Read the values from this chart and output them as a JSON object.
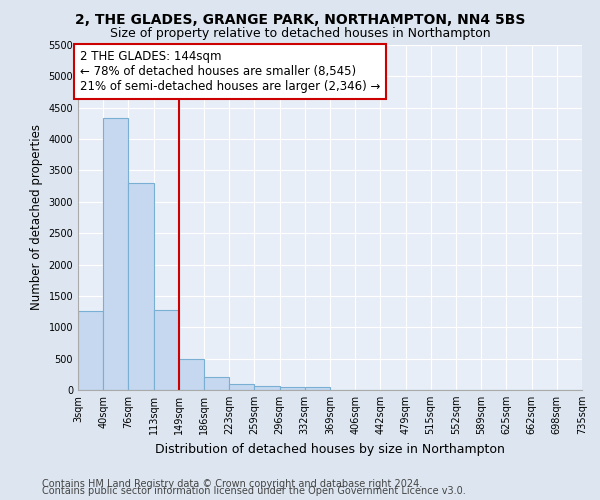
{
  "title": "2, THE GLADES, GRANGE PARK, NORTHAMPTON, NN4 5BS",
  "subtitle": "Size of property relative to detached houses in Northampton",
  "xlabel": "Distribution of detached houses by size in Northampton",
  "ylabel": "Number of detached properties",
  "footnote1": "Contains HM Land Registry data © Crown copyright and database right 2024.",
  "footnote2": "Contains public sector information licensed under the Open Government Licence v3.0.",
  "annotation_line1": "2 THE GLADES: 144sqm",
  "annotation_line2": "← 78% of detached houses are smaller (8,545)",
  "annotation_line3": "21% of semi-detached houses are larger (2,346) →",
  "bar_edges": [
    3,
    40,
    76,
    113,
    149,
    186,
    223,
    259,
    296,
    332,
    369,
    406,
    442,
    479,
    515,
    552,
    589,
    625,
    662,
    698,
    735
  ],
  "bar_heights": [
    1260,
    4330,
    3300,
    1280,
    490,
    210,
    90,
    60,
    55,
    40,
    0,
    0,
    0,
    0,
    0,
    0,
    0,
    0,
    0,
    0
  ],
  "bar_color": "#c5d8f0",
  "bar_edge_color": "#7aafd4",
  "bar_linewidth": 0.8,
  "vline_color": "#cc0000",
  "vline_x": 149,
  "vline_linewidth": 1.5,
  "annotation_box_color": "#cc0000",
  "annotation_box_fill": "#ffffff",
  "ylim": [
    0,
    5500
  ],
  "yticks": [
    0,
    500,
    1000,
    1500,
    2000,
    2500,
    3000,
    3500,
    4000,
    4500,
    5000,
    5500
  ],
  "bg_color": "#dde6f0",
  "plot_bg_color": "#e8eef7",
  "grid_color": "#ffffff",
  "title_fontsize": 10,
  "subtitle_fontsize": 9,
  "xlabel_fontsize": 9,
  "ylabel_fontsize": 8.5,
  "tick_fontsize": 7,
  "annotation_fontsize": 8.5,
  "footnote_fontsize": 7
}
